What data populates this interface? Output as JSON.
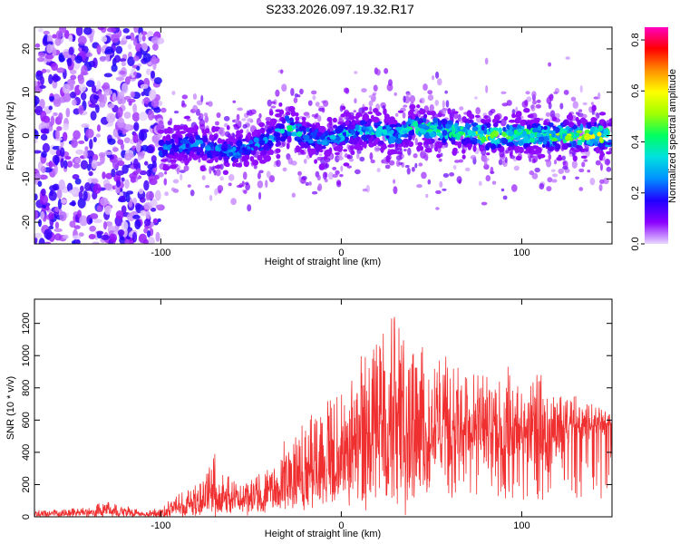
{
  "title": "S233.2026.097.19.32.R17",
  "chart_data": [
    {
      "type": "heatmap",
      "xlabel": "Height of straight line (km)",
      "ylabel": "Frequency (Hz)",
      "xlim": [
        -170,
        150
      ],
      "ylim": [
        -25,
        25
      ],
      "x_ticks": [
        -100,
        0,
        100
      ],
      "y_ticks": [
        -20,
        -10,
        0,
        10,
        20
      ],
      "x_tick_labels": [
        "-100",
        "0",
        "100"
      ],
      "y_tick_labels": [
        "-20",
        "-10",
        "0",
        "10",
        "20"
      ],
      "colorbar": {
        "label": "Normalized spectral amplitude",
        "range": [
          0.0,
          0.85
        ],
        "ticks": [
          0.0,
          0.2,
          0.4,
          0.6,
          0.8
        ],
        "tick_labels": [
          "0.0",
          "0.2",
          "0.4",
          "0.6",
          "0.8"
        ],
        "colors": [
          "#e8d8ff",
          "#8a00ff",
          "#2000ff",
          "#0090ff",
          "#00e0e0",
          "#00ff60",
          "#a0ff00",
          "#ffff00",
          "#ff9000",
          "#ff0000",
          "#ff00c0"
        ]
      },
      "ridge": {
        "x": [
          -100,
          -80,
          -60,
          -40,
          -30,
          -20,
          -10,
          0,
          10,
          20,
          30,
          40,
          60,
          80,
          100,
          120,
          140,
          150
        ],
        "y": [
          -3,
          -2,
          -4,
          -1,
          2,
          0,
          -1,
          0,
          1,
          1,
          0,
          2,
          1,
          0,
          0,
          0,
          0,
          0
        ],
        "peak_amplitude": [
          0.25,
          0.3,
          0.3,
          0.3,
          0.45,
          0.35,
          0.3,
          0.35,
          0.35,
          0.4,
          0.35,
          0.45,
          0.45,
          0.55,
          0.5,
          0.55,
          0.6,
          0.6
        ]
      },
      "noise_region_x": [
        -170,
        -100
      ]
    },
    {
      "type": "line",
      "xlabel": "Height of straight line (km)",
      "ylabel": "SNR (10 * v/v)",
      "xlim": [
        -170,
        150
      ],
      "ylim": [
        0,
        1350
      ],
      "x_ticks": [
        -100,
        0,
        100
      ],
      "y_ticks": [
        0,
        200,
        400,
        600,
        800,
        1000,
        1200
      ],
      "x_tick_labels": [
        "-100",
        "0",
        "100"
      ],
      "y_tick_labels": [
        "0",
        "200",
        "400",
        "600",
        "800",
        "1000",
        "1200"
      ],
      "color": "#f03030",
      "envelope": {
        "x": [
          -170,
          -140,
          -130,
          -110,
          -100,
          -90,
          -80,
          -70,
          -60,
          -50,
          -40,
          -30,
          -20,
          -10,
          0,
          10,
          20,
          30,
          40,
          50,
          60,
          70,
          80,
          90,
          100,
          110,
          120,
          130,
          140,
          150
        ],
        "mean": [
          15,
          25,
          40,
          15,
          20,
          60,
          90,
          120,
          110,
          120,
          130,
          250,
          280,
          320,
          380,
          480,
          520,
          560,
          540,
          550,
          560,
          520,
          540,
          520,
          520,
          520,
          540,
          560,
          560,
          580
        ],
        "max": [
          40,
          60,
          100,
          40,
          60,
          150,
          200,
          400,
          230,
          260,
          300,
          520,
          600,
          700,
          800,
          1000,
          1100,
          1300,
          1200,
          1000,
          1000,
          900,
          900,
          950,
          800,
          900,
          800,
          750,
          700,
          650
        ]
      }
    }
  ]
}
